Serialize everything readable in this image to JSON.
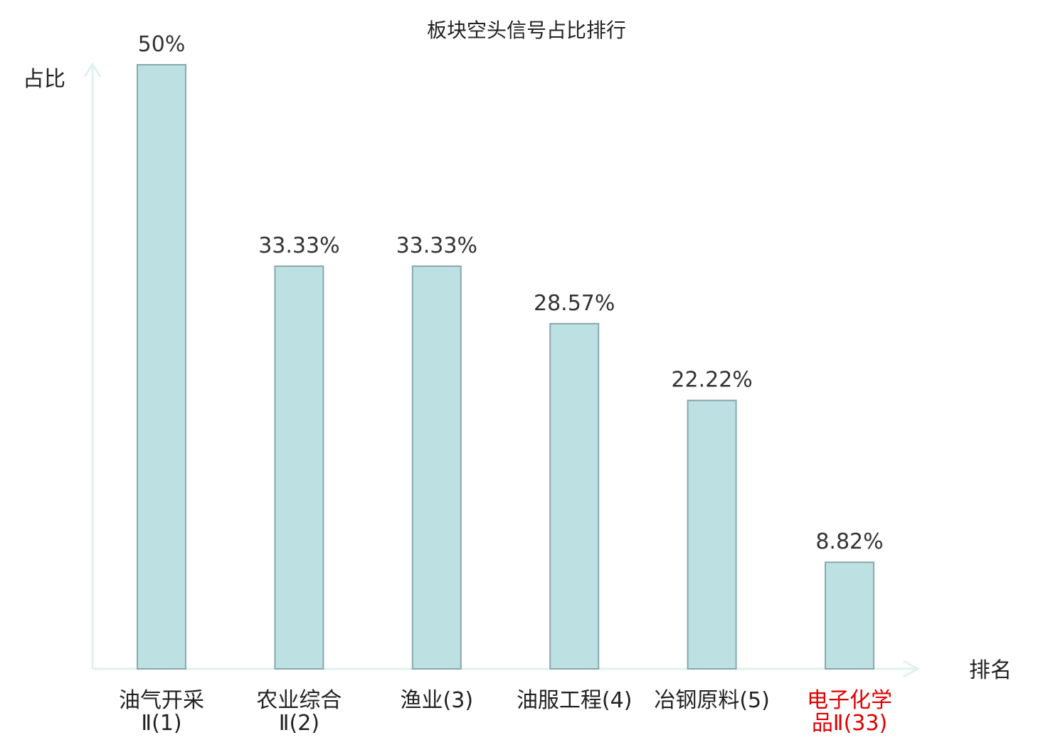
{
  "chart_data": {
    "type": "bar",
    "title": "板块空头信号占比排行",
    "ylabel": "占比",
    "xlabel": "排名",
    "ylim": [
      0,
      50
    ],
    "grid": false,
    "categories": [
      {
        "lines": [
          "油气开采",
          "Ⅱ(1)"
        ],
        "highlight": false
      },
      {
        "lines": [
          "农业综合",
          "Ⅱ(2)"
        ],
        "highlight": false
      },
      {
        "lines": [
          "渔业(3)"
        ],
        "highlight": false
      },
      {
        "lines": [
          "油服工程(4)"
        ],
        "highlight": false
      },
      {
        "lines": [
          "冶钢原料(5)"
        ],
        "highlight": false
      },
      {
        "lines": [
          "电子化学",
          "品Ⅱ(33)"
        ],
        "highlight": true
      }
    ],
    "values": [
      50,
      33.33,
      33.33,
      28.57,
      22.22,
      8.82
    ],
    "value_labels": [
      "50%",
      "33.33%",
      "33.33%",
      "28.57%",
      "22.22%",
      "8.82%"
    ],
    "colors": {
      "bar_fill": "#bde0e3",
      "bar_stroke": "#8aa8ab",
      "axis": "#e0f2ef",
      "highlight": "#e00000"
    }
  }
}
